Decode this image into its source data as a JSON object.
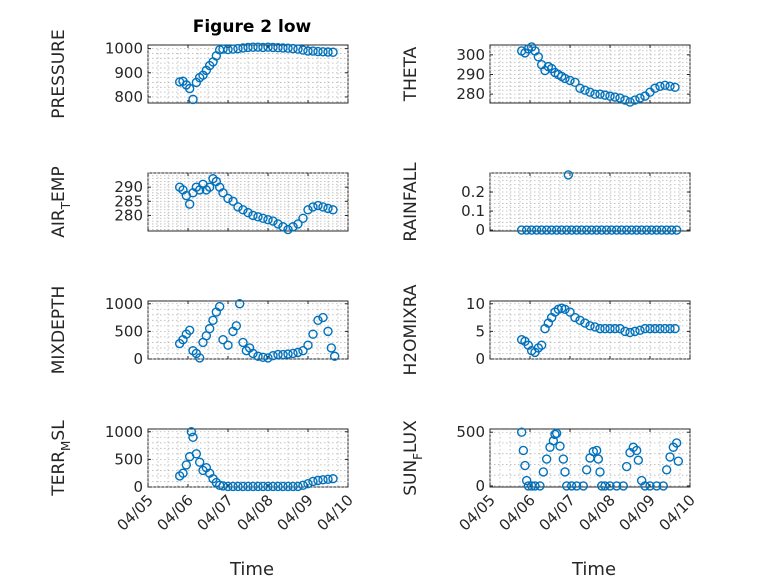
{
  "figure": {
    "title": "Figure 2 low",
    "marker_color": "#0072bd"
  },
  "chart_data": [
    {
      "type": "scatter",
      "ylabel": "PRESSURE",
      "xlim": [
        "04/05",
        "04/10"
      ],
      "xticks": [
        "04/05",
        "04/06",
        "04/07",
        "04/08",
        "04/09",
        "04/10"
      ],
      "ylim": [
        775,
        1015
      ],
      "yticks": [
        800,
        900,
        1000
      ],
      "grid": true,
      "x": [
        "04/05 19:00",
        "04/05 21:00",
        "04/05 23:00",
        "04/06 01:00",
        "04/06 03:00",
        "04/06 05:00",
        "04/06 07:00",
        "04/06 09:00",
        "04/06 11:00",
        "04/06 13:00",
        "04/06 15:00",
        "04/06 17:00",
        "04/06 19:00",
        "04/06 21:00",
        "04/07 00:00",
        "04/07 03:00",
        "04/07 06:00",
        "04/07 09:00",
        "04/07 12:00",
        "04/07 15:00",
        "04/07 18:00",
        "04/07 21:00",
        "04/08 00:00",
        "04/08 03:00",
        "04/08 06:00",
        "04/08 09:00",
        "04/08 12:00",
        "04/08 15:00",
        "04/08 18:00",
        "04/08 21:00",
        "04/09 00:00",
        "04/09 03:00",
        "04/09 06:00",
        "04/09 09:00",
        "04/09 12:00",
        "04/09 15:00"
      ],
      "y": [
        862,
        865,
        850,
        835,
        790,
        860,
        880,
        890,
        910,
        930,
        945,
        970,
        995,
        998,
        996,
        998,
        1000,
        1003,
        1005,
        1006,
        1006,
        1005,
        1006,
        1005,
        1004,
        1003,
        1002,
        1000,
        998,
        994,
        990,
        990,
        988,
        987,
        986,
        985
      ]
    },
    {
      "type": "scatter",
      "ylabel": "THETA",
      "xlim": [
        "04/05",
        "04/10"
      ],
      "xticks": [
        "04/05",
        "04/06",
        "04/07",
        "04/08",
        "04/09",
        "04/10"
      ],
      "ylim": [
        275.5,
        305
      ],
      "yticks": [
        280,
        290,
        300
      ],
      "grid": true,
      "x": [
        "04/05 19:00",
        "04/05 21:00",
        "04/05 23:00",
        "04/06 01:00",
        "04/06 03:00",
        "04/06 05:00",
        "04/06 07:00",
        "04/06 09:00",
        "04/06 11:00",
        "04/06 13:00",
        "04/06 15:00",
        "04/06 17:00",
        "04/06 19:00",
        "04/06 21:00",
        "04/07 00:00",
        "04/07 03:00",
        "04/07 06:00",
        "04/07 09:00",
        "04/07 12:00",
        "04/07 15:00",
        "04/07 18:00",
        "04/07 21:00",
        "04/08 00:00",
        "04/08 03:00",
        "04/08 06:00",
        "04/08 09:00",
        "04/08 12:00",
        "04/08 15:00",
        "04/08 18:00",
        "04/08 21:00",
        "04/09 00:00",
        "04/09 03:00",
        "04/09 06:00",
        "04/09 09:00",
        "04/09 12:00",
        "04/09 15:00"
      ],
      "y": [
        302,
        301,
        303,
        304,
        302,
        299,
        295,
        292,
        294,
        293,
        291,
        290,
        289,
        288,
        287,
        286,
        283,
        282,
        281,
        280,
        280,
        279.5,
        279,
        278.5,
        278,
        277,
        276,
        277,
        278,
        279,
        281,
        283,
        284,
        284.5,
        284,
        283.5
      ]
    },
    {
      "type": "scatter",
      "ylabel": "AIR_TEMP",
      "xlim": [
        "04/05",
        "04/10"
      ],
      "xticks": [
        "04/05",
        "04/06",
        "04/07",
        "04/08",
        "04/09",
        "04/10"
      ],
      "ylim": [
        274.5,
        295
      ],
      "yticks": [
        280,
        285,
        290
      ],
      "grid": true,
      "x": [
        "04/05 19:00",
        "04/05 21:00",
        "04/05 23:00",
        "04/06 01:00",
        "04/06 03:00",
        "04/06 05:00",
        "04/06 07:00",
        "04/06 09:00",
        "04/06 11:00",
        "04/06 13:00",
        "04/06 15:00",
        "04/06 17:00",
        "04/06 19:00",
        "04/06 21:00",
        "04/07 00:00",
        "04/07 03:00",
        "04/07 06:00",
        "04/07 09:00",
        "04/07 12:00",
        "04/07 15:00",
        "04/07 18:00",
        "04/07 21:00",
        "04/08 00:00",
        "04/08 03:00",
        "04/08 06:00",
        "04/08 09:00",
        "04/08 12:00",
        "04/08 15:00",
        "04/08 18:00",
        "04/08 21:00",
        "04/09 00:00",
        "04/09 03:00",
        "04/09 06:00",
        "04/09 09:00",
        "04/09 12:00",
        "04/09 15:00"
      ],
      "y": [
        290,
        289,
        287,
        284,
        288,
        290,
        289,
        291,
        289,
        290,
        293,
        292,
        290,
        288,
        286,
        285,
        283,
        282,
        281,
        280,
        279.5,
        279,
        278.5,
        278,
        277,
        276,
        275,
        276,
        277,
        279,
        282,
        283,
        283.5,
        283,
        282.5,
        282
      ]
    },
    {
      "type": "scatter",
      "ylabel": "RAINFALL",
      "xlim": [
        "04/05",
        "04/10"
      ],
      "xticks": [
        "04/05",
        "04/06",
        "04/07",
        "04/08",
        "04/09",
        "04/10"
      ],
      "ylim": [
        -0.005,
        0.3
      ],
      "yticks": [
        0,
        0.1,
        0.2
      ],
      "grid": true,
      "x": [
        "04/05 19:00",
        "04/05 22:00",
        "04/06 01:00",
        "04/06 04:00",
        "04/06 07:00",
        "04/06 10:00",
        "04/06 13:00",
        "04/06 16:00",
        "04/06 19:00",
        "04/06 22:00",
        "04/06 23:00",
        "04/07 01:00",
        "04/07 04:00",
        "04/07 07:00",
        "04/07 10:00",
        "04/07 13:00",
        "04/07 16:00",
        "04/07 19:00",
        "04/07 22:00",
        "04/08 01:00",
        "04/08 04:00",
        "04/08 07:00",
        "04/08 10:00",
        "04/08 13:00",
        "04/08 16:00",
        "04/08 19:00",
        "04/08 22:00",
        "04/09 01:00",
        "04/09 04:00",
        "04/09 07:00",
        "04/09 10:00",
        "04/09 13:00",
        "04/09 16:00"
      ],
      "y": [
        0,
        0,
        0,
        0,
        0,
        0,
        0,
        0,
        0,
        0,
        0.29,
        0,
        0,
        0,
        0,
        0,
        0,
        0,
        0,
        0,
        0,
        0,
        0,
        0,
        0,
        0,
        0,
        0,
        0,
        0,
        0,
        0,
        0
      ]
    },
    {
      "type": "scatter",
      "ylabel": "MIXDEPTH",
      "xlim": [
        "04/05",
        "04/10"
      ],
      "xticks": [
        "04/05",
        "04/06",
        "04/07",
        "04/08",
        "04/09",
        "04/10"
      ],
      "ylim": [
        0,
        1050
      ],
      "yticks": [
        0,
        500,
        1000
      ],
      "grid": true,
      "x": [
        "04/05 19:00",
        "04/05 21:00",
        "04/05 23:00",
        "04/06 01:00",
        "04/06 03:00",
        "04/06 05:00",
        "04/06 07:00",
        "04/06 09:00",
        "04/06 11:00",
        "04/06 13:00",
        "04/06 15:00",
        "04/06 17:00",
        "04/06 19:00",
        "04/06 21:00",
        "04/07 00:00",
        "04/07 03:00",
        "04/07 05:00",
        "04/07 07:00",
        "04/07 09:00",
        "04/07 11:00",
        "04/07 13:00",
        "04/07 15:00",
        "04/07 18:00",
        "04/07 21:00",
        "04/08 00:00",
        "04/08 03:00",
        "04/08 06:00",
        "04/08 09:00",
        "04/08 12:00",
        "04/08 15:00",
        "04/08 18:00",
        "04/08 21:00",
        "04/09 00:00",
        "04/09 03:00",
        "04/09 06:00",
        "04/09 09:00",
        "04/09 12:00",
        "04/09 14:00",
        "04/09 16:00"
      ],
      "y": [
        280,
        350,
        450,
        520,
        150,
        100,
        20,
        300,
        420,
        550,
        700,
        850,
        950,
        350,
        250,
        500,
        600,
        1000,
        300,
        150,
        200,
        100,
        50,
        30,
        20,
        60,
        80,
        80,
        90,
        100,
        120,
        150,
        250,
        450,
        700,
        750,
        500,
        200,
        50
      ]
    },
    {
      "type": "scatter",
      "ylabel": "H2OMIXRA",
      "xlim": [
        "04/05",
        "04/10"
      ],
      "xticks": [
        "04/05",
        "04/06",
        "04/07",
        "04/08",
        "04/09",
        "04/10"
      ],
      "ylim": [
        0,
        10.5
      ],
      "yticks": [
        0,
        5,
        10
      ],
      "grid": true,
      "x": [
        "04/05 19:00",
        "04/05 21:00",
        "04/05 23:00",
        "04/06 01:00",
        "04/06 03:00",
        "04/06 05:00",
        "04/06 07:00",
        "04/06 09:00",
        "04/06 11:00",
        "04/06 13:00",
        "04/06 15:00",
        "04/06 17:00",
        "04/06 19:00",
        "04/06 21:00",
        "04/07 00:00",
        "04/07 03:00",
        "04/07 06:00",
        "04/07 09:00",
        "04/07 12:00",
        "04/07 15:00",
        "04/07 18:00",
        "04/07 21:00",
        "04/08 00:00",
        "04/08 03:00",
        "04/08 06:00",
        "04/08 09:00",
        "04/08 12:00",
        "04/08 15:00",
        "04/08 18:00",
        "04/08 21:00",
        "04/09 00:00",
        "04/09 03:00",
        "04/09 06:00",
        "04/09 09:00",
        "04/09 12:00",
        "04/09 15:00"
      ],
      "y": [
        3.5,
        3.2,
        2.5,
        1.5,
        1.2,
        2,
        2.5,
        5.5,
        6.5,
        7.5,
        8.5,
        9,
        9.2,
        9,
        8.5,
        7.5,
        7,
        6.5,
        6,
        5.8,
        5.5,
        5.5,
        5.5,
        5.5,
        5.5,
        5,
        4.8,
        5,
        5.2,
        5.5,
        5.5,
        5.5,
        5.5,
        5.5,
        5.5,
        5.5
      ]
    },
    {
      "type": "scatter",
      "ylabel": "TERR_MSL",
      "xlim": [
        "04/05",
        "04/10"
      ],
      "xticks": [
        "04/05",
        "04/06",
        "04/07",
        "04/08",
        "04/09",
        "04/10"
      ],
      "ylim": [
        0,
        1050
      ],
      "yticks": [
        0,
        500,
        1000
      ],
      "grid": true,
      "x": [
        "04/05 19:00",
        "04/05 21:00",
        "04/05 23:00",
        "04/06 01:00",
        "04/06 02:00",
        "04/06 03:00",
        "04/06 05:00",
        "04/06 07:00",
        "04/06 09:00",
        "04/06 11:00",
        "04/06 13:00",
        "04/06 15:00",
        "04/06 17:00",
        "04/06 19:00",
        "04/06 21:00",
        "04/07 00:00",
        "04/07 03:00",
        "04/07 06:00",
        "04/07 09:00",
        "04/07 12:00",
        "04/07 15:00",
        "04/07 18:00",
        "04/07 21:00",
        "04/08 00:00",
        "04/08 03:00",
        "04/08 06:00",
        "04/08 09:00",
        "04/08 12:00",
        "04/08 15:00",
        "04/08 18:00",
        "04/08 21:00",
        "04/09 00:00",
        "04/09 03:00",
        "04/09 06:00",
        "04/09 09:00",
        "04/09 12:00",
        "04/09 15:00"
      ],
      "y": [
        200,
        250,
        400,
        550,
        1000,
        900,
        600,
        450,
        300,
        350,
        250,
        150,
        80,
        30,
        20,
        10,
        10,
        10,
        10,
        10,
        10,
        10,
        10,
        10,
        10,
        10,
        10,
        10,
        10,
        10,
        30,
        60,
        100,
        120,
        130,
        140,
        150
      ]
    },
    {
      "type": "scatter",
      "ylabel": "SUN_FLUX",
      "xlim": [
        "04/05",
        "04/10"
      ],
      "xticks": [
        "04/05",
        "04/06",
        "04/07",
        "04/08",
        "04/09",
        "04/10"
      ],
      "ylim": [
        -10,
        530
      ],
      "yticks": [
        0,
        500
      ],
      "grid": true,
      "x": [
        "04/05 19:00",
        "04/05 20:00",
        "04/05 21:00",
        "04/05 22:00",
        "04/05 23:00",
        "04/06 01:00",
        "04/06 03:00",
        "04/06 06:00",
        "04/06 08:00",
        "04/06 10:00",
        "04/06 12:00",
        "04/06 14:00",
        "04/06 15:00",
        "04/06 16:00",
        "04/06 18:00",
        "04/06 20:00",
        "04/06 21:00",
        "04/06 22:00",
        "04/07 01:00",
        "04/07 04:00",
        "04/07 08:00",
        "04/07 10:00",
        "04/07 12:00",
        "04/07 14:00",
        "04/07 16:00",
        "04/07 17:00",
        "04/07 18:00",
        "04/07 19:00",
        "04/07 21:00",
        "04/08 00:00",
        "04/08 04:00",
        "04/08 08:00",
        "04/08 10:00",
        "04/08 12:00",
        "04/08 14:00",
        "04/08 16:00",
        "04/08 17:00",
        "04/08 19:00",
        "04/08 21:00",
        "04/09 00:00",
        "04/09 04:00",
        "04/09 08:00",
        "04/09 10:00",
        "04/09 12:00",
        "04/09 14:00",
        "04/09 16:00",
        "04/09 17:00"
      ],
      "y": [
        500,
        330,
        190,
        50,
        0,
        0,
        0,
        0,
        130,
        250,
        360,
        420,
        480,
        490,
        370,
        250,
        130,
        0,
        0,
        0,
        0,
        150,
        260,
        320,
        330,
        250,
        130,
        0,
        0,
        0,
        0,
        0,
        180,
        310,
        360,
        330,
        240,
        50,
        0,
        0,
        0,
        0,
        150,
        270,
        360,
        400,
        230
      ]
    }
  ],
  "axes_labels": {
    "left_xlabel": "Time",
    "right_xlabel": "Time",
    "ylabel_parts": [
      {
        "base": "PRESSURE",
        "sub": "",
        "after": ""
      },
      {
        "base": "THETA",
        "sub": "",
        "after": ""
      },
      {
        "base": "AIR",
        "sub": "T",
        "after": "EMP"
      },
      {
        "base": "RAINFALL",
        "sub": "",
        "after": ""
      },
      {
        "base": "MIXDEPTH",
        "sub": "",
        "after": ""
      },
      {
        "base": "H2OMIXRA",
        "sub": "",
        "after": ""
      },
      {
        "base": "TERR",
        "sub": "M",
        "after": "SL"
      },
      {
        "base": "SUN",
        "sub": "F",
        "after": "LUX"
      }
    ]
  }
}
